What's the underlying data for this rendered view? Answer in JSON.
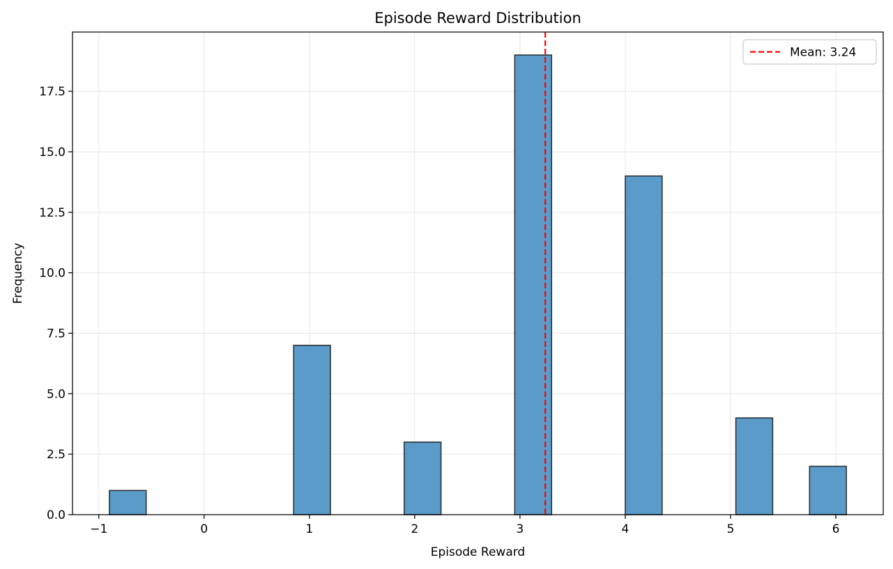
{
  "chart_data": {
    "type": "bar",
    "title": "Episode Reward Distribution",
    "xlabel": "Episode Reward",
    "ylabel": "Frequency",
    "xlim": [
      -1.25,
      6.45
    ],
    "ylim": [
      0,
      19.95
    ],
    "x_ticks": [
      -1,
      0,
      1,
      2,
      3,
      4,
      5,
      6
    ],
    "x_tick_labels": [
      "−1",
      "0",
      "1",
      "2",
      "3",
      "4",
      "5",
      "6"
    ],
    "y_ticks": [
      0,
      2.5,
      5,
      7.5,
      10,
      12.5,
      15,
      17.5
    ],
    "y_tick_labels": [
      "0.0",
      "2.5",
      "5.0",
      "7.5",
      "10.0",
      "12.5",
      "15.0",
      "17.5"
    ],
    "bins": [
      {
        "x0": -0.9,
        "x1": -0.55,
        "count": 1
      },
      {
        "x0": 0.85,
        "x1": 1.2,
        "count": 7
      },
      {
        "x0": 1.9,
        "x1": 2.25,
        "count": 3
      },
      {
        "x0": 2.95,
        "x1": 3.3,
        "count": 19
      },
      {
        "x0": 4.0,
        "x1": 4.35,
        "count": 14
      },
      {
        "x0": 5.05,
        "x1": 5.4,
        "count": 4
      },
      {
        "x0": 5.75,
        "x1": 6.1,
        "count": 2
      }
    ],
    "mean": 3.24,
    "mean_label": "Mean: 3.24",
    "grid": true,
    "legend_position": "top-right",
    "colors": {
      "bar": "#5a9bc9",
      "mean_line": "#ff0000"
    }
  }
}
